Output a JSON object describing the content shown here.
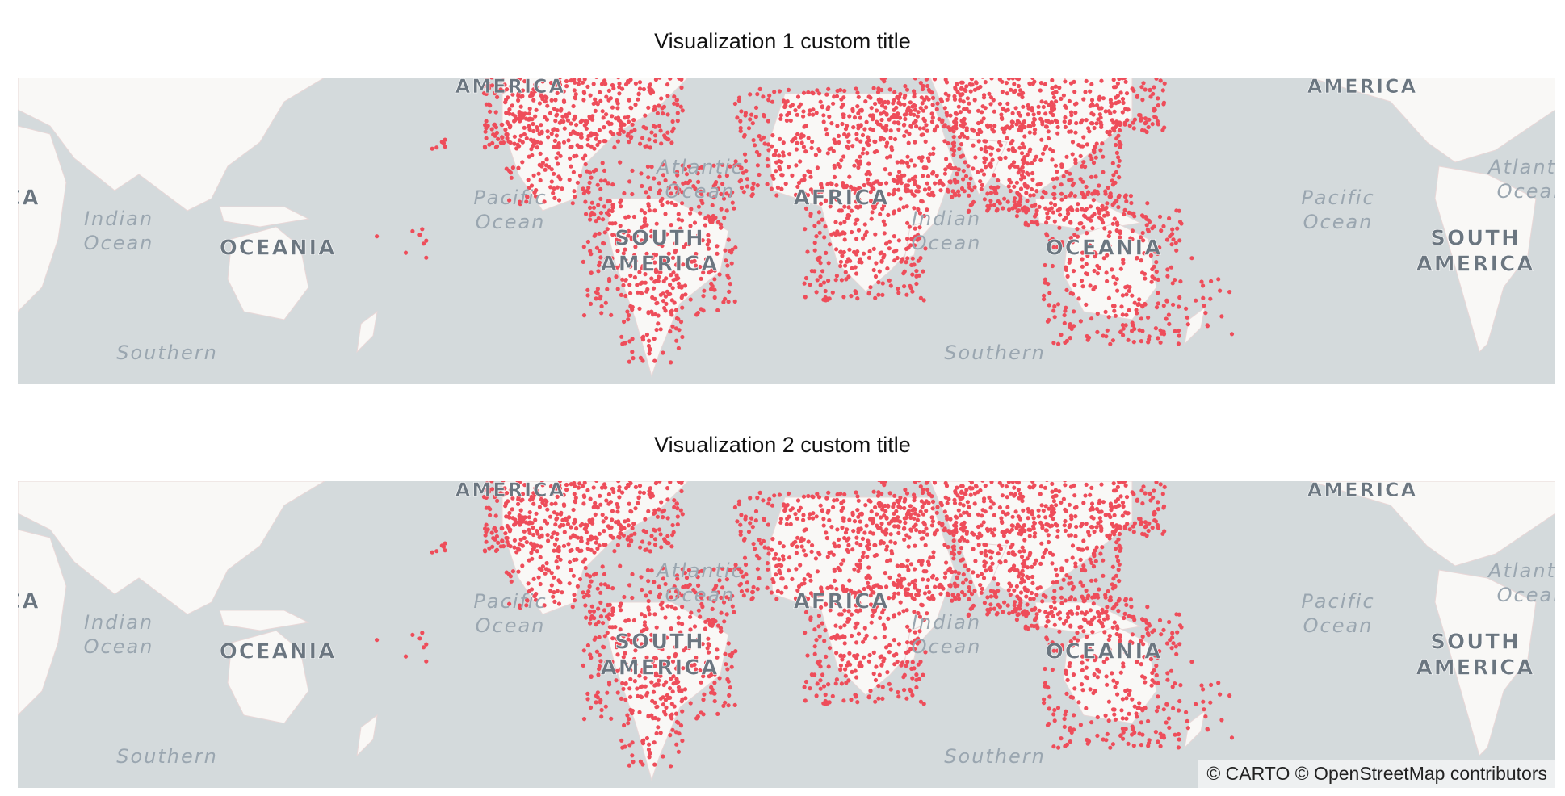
{
  "visualizations": [
    {
      "title": "Visualization 1 custom title"
    },
    {
      "title": "Visualization 2 custom title"
    }
  ],
  "map": {
    "ocean_color": "#d4dadc",
    "land_color": "#f9f8f6",
    "point_color": "#ee4d5a",
    "labels": {
      "north_america": "AMERICA",
      "south_america_1": "SOUTH",
      "south_america_2": "AMERICA",
      "africa_partial": "CA",
      "africa": "AFRICA",
      "oceania": "OCEANIA",
      "indian_ocean_1": "Indian",
      "indian_ocean_2": "Ocean",
      "pacific_ocean_1": "Pacific",
      "pacific_ocean_2": "Ocean",
      "atlantic_ocean_1": "Atlantic",
      "atlantic_ocean_2": "Ocean",
      "southern_ocean": "Southern"
    }
  },
  "attribution": "© CARTO © OpenStreetMap contributors"
}
